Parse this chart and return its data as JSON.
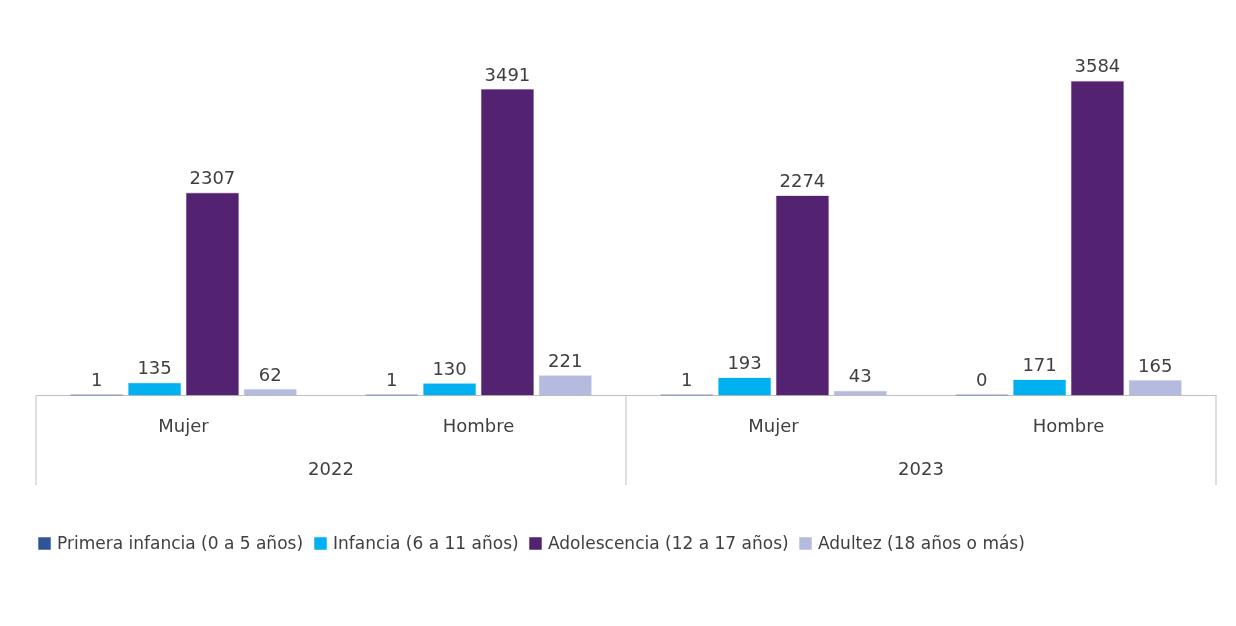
{
  "chart_data": {
    "type": "bar",
    "categories": [
      "Mujer",
      "Hombre",
      "Mujer",
      "Hombre"
    ],
    "annotations": [
      "2022",
      "2023"
    ],
    "series": [
      {
        "name": "Primera infancia (0 a 5 años)",
        "color": "#2f5597",
        "values": [
          1,
          1,
          1,
          0
        ]
      },
      {
        "name": "Infancia (6 a 11 años)",
        "color": "#00b0f0",
        "values": [
          135,
          130,
          193,
          171
        ]
      },
      {
        "name": "Adolescencia (12 a 17 años)",
        "color": "#532271",
        "values": [
          2307,
          3491,
          2274,
          3584
        ]
      },
      {
        "name": "Adultez (18 años o más)",
        "color": "#b4bbdf",
        "values": [
          62,
          221,
          43,
          165
        ]
      }
    ],
    "data_labels": true,
    "grid": false,
    "legend": "bottom",
    "tick_labels": "x"
  }
}
